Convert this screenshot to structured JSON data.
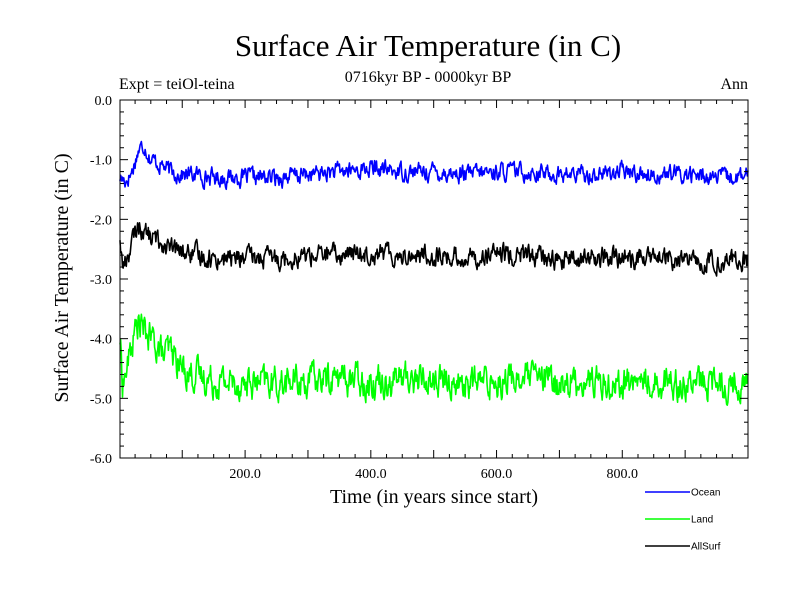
{
  "chart_data": {
    "type": "line",
    "title": "Surface Air Temperature (in C)",
    "subtitle_left": "Expt = teiOl-teina",
    "subtitle_center": "0716kyr BP - 0000kyr BP",
    "subtitle_right": "Ann",
    "xlabel": "Time (in years since start)",
    "ylabel": "Surface Air Temperature (in C)",
    "xlim": [
      1,
      1000
    ],
    "ylim": [
      -6.0,
      0.0
    ],
    "xticks": [
      200,
      400,
      600,
      800
    ],
    "xtick_labels": [
      "200.0",
      "400.0",
      "600.0",
      "800.0"
    ],
    "yticks": [
      0,
      -1,
      -2,
      -3,
      -4,
      -5,
      -6
    ],
    "ytick_labels": [
      "0.0",
      "-1.0",
      "-2.0",
      "-3.0",
      "-4.0",
      "-5.0",
      "-6.0"
    ],
    "grid": false,
    "legend_position": "bottom-right, below plot",
    "series": [
      {
        "name": "Ocean",
        "color": "#0000ff",
        "values": [
          [
            1,
            -1.3
          ],
          [
            10,
            -1.35
          ],
          [
            20,
            -1.2
          ],
          [
            30,
            -0.85
          ],
          [
            40,
            -0.75
          ],
          [
            50,
            -1.0
          ],
          [
            60,
            -1.05
          ],
          [
            70,
            -1.1
          ],
          [
            80,
            -1.2
          ],
          [
            100,
            -1.25
          ],
          [
            120,
            -1.25
          ],
          [
            150,
            -1.3
          ],
          [
            200,
            -1.3
          ],
          [
            250,
            -1.3
          ],
          [
            300,
            -1.25
          ],
          [
            350,
            -1.2
          ],
          [
            400,
            -1.15
          ],
          [
            450,
            -1.2
          ],
          [
            500,
            -1.2
          ],
          [
            550,
            -1.25
          ],
          [
            600,
            -1.2
          ],
          [
            650,
            -1.2
          ],
          [
            700,
            -1.25
          ],
          [
            750,
            -1.25
          ],
          [
            800,
            -1.2
          ],
          [
            850,
            -1.25
          ],
          [
            900,
            -1.25
          ],
          [
            950,
            -1.3
          ],
          [
            1000,
            -1.3
          ]
        ]
      },
      {
        "name": "Land",
        "color": "#00ff00",
        "values": [
          [
            1,
            -4.0
          ],
          [
            5,
            -4.7
          ],
          [
            10,
            -4.6
          ],
          [
            20,
            -4.1
          ],
          [
            30,
            -3.7
          ],
          [
            40,
            -3.9
          ],
          [
            50,
            -4.0
          ],
          [
            60,
            -4.1
          ],
          [
            70,
            -4.3
          ],
          [
            80,
            -4.2
          ],
          [
            100,
            -4.5
          ],
          [
            120,
            -4.6
          ],
          [
            150,
            -4.7
          ],
          [
            200,
            -4.75
          ],
          [
            250,
            -4.75
          ],
          [
            300,
            -4.7
          ],
          [
            350,
            -4.65
          ],
          [
            400,
            -4.7
          ],
          [
            450,
            -4.65
          ],
          [
            500,
            -4.7
          ],
          [
            550,
            -4.75
          ],
          [
            600,
            -4.7
          ],
          [
            650,
            -4.65
          ],
          [
            700,
            -4.75
          ],
          [
            750,
            -4.7
          ],
          [
            800,
            -4.75
          ],
          [
            850,
            -4.7
          ],
          [
            900,
            -4.75
          ],
          [
            950,
            -4.75
          ],
          [
            1000,
            -4.75
          ]
        ]
      },
      {
        "name": "AllSurf",
        "color": "#000000",
        "values": [
          [
            1,
            -2.3
          ],
          [
            5,
            -2.8
          ],
          [
            10,
            -2.7
          ],
          [
            20,
            -2.4
          ],
          [
            30,
            -2.1
          ],
          [
            40,
            -2.2
          ],
          [
            50,
            -2.3
          ],
          [
            60,
            -2.35
          ],
          [
            70,
            -2.4
          ],
          [
            80,
            -2.5
          ],
          [
            100,
            -2.55
          ],
          [
            120,
            -2.6
          ],
          [
            150,
            -2.65
          ],
          [
            200,
            -2.65
          ],
          [
            250,
            -2.65
          ],
          [
            300,
            -2.6
          ],
          [
            350,
            -2.6
          ],
          [
            400,
            -2.55
          ],
          [
            450,
            -2.6
          ],
          [
            500,
            -2.6
          ],
          [
            550,
            -2.65
          ],
          [
            600,
            -2.6
          ],
          [
            650,
            -2.6
          ],
          [
            700,
            -2.7
          ],
          [
            750,
            -2.65
          ],
          [
            800,
            -2.65
          ],
          [
            850,
            -2.65
          ],
          [
            900,
            -2.7
          ],
          [
            950,
            -2.7
          ],
          [
            1000,
            -2.7
          ]
        ]
      }
    ]
  }
}
